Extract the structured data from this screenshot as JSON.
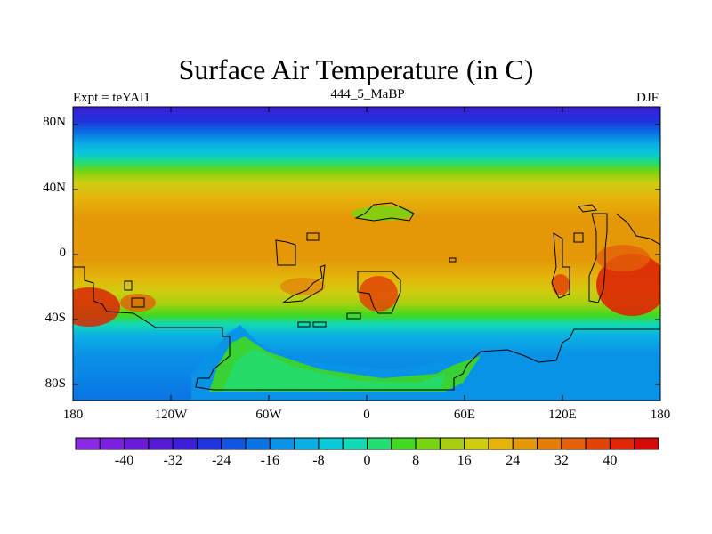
{
  "map": {
    "title": "Surface Air Temperature (in C)",
    "left_label": "Expt = teYAl1",
    "center_label": "444_5_MaBP",
    "right_label": "DJF",
    "lat_ticks": [
      {
        "label": "80N",
        "lat": 80
      },
      {
        "label": "40N",
        "lat": 40
      },
      {
        "label": "0",
        "lat": 0
      },
      {
        "label": "40S",
        "lat": -40
      },
      {
        "label": "80S",
        "lat": -80
      }
    ],
    "lon_ticks": [
      {
        "label": "180",
        "lon": -180
      },
      {
        "label": "120W",
        "lon": -120
      },
      {
        "label": "60W",
        "lon": -60
      },
      {
        "label": "0",
        "lon": 0
      },
      {
        "label": "60E",
        "lon": 60
      },
      {
        "label": "120E",
        "lon": 120
      },
      {
        "label": "180",
        "lon": 180
      }
    ],
    "colorbar": {
      "labels": [
        "-40",
        "-32",
        "-24",
        "-16",
        "-8",
        "0",
        "8",
        "16",
        "24",
        "32",
        "40"
      ],
      "colors": [
        "#8a2be2",
        "#7b1fe0",
        "#6a1bd8",
        "#551ad4",
        "#3c1ed6",
        "#1e34dc",
        "#1055e0",
        "#0a74e4",
        "#0a93e6",
        "#0ab0e4",
        "#0ac8d8",
        "#12d8b4",
        "#22dc74",
        "#40d820",
        "#78d410",
        "#a8d010",
        "#d0cc10",
        "#e4b40a",
        "#e49808",
        "#e47c08",
        "#e46008",
        "#e24406",
        "#dc2606",
        "#d40a08"
      ]
    }
  }
}
